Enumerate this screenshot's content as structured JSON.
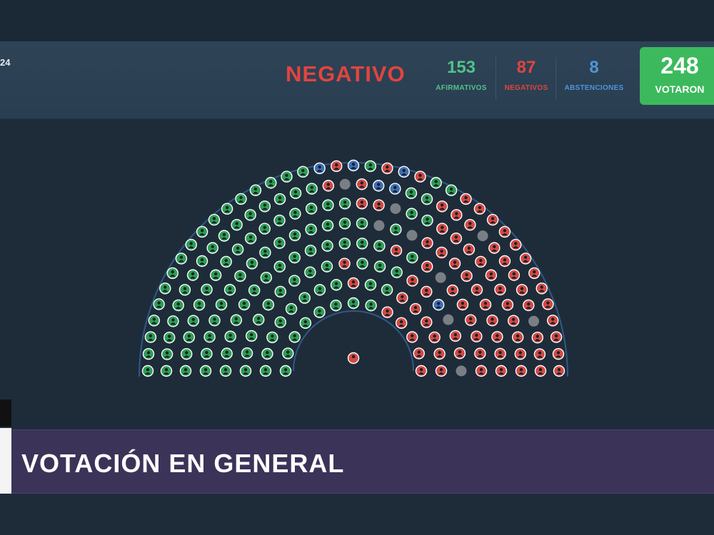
{
  "header": {
    "date_fragment": "24",
    "result": "NEGATIVO",
    "stats": {
      "afirmativos": {
        "value": "153",
        "label": "AFIRMATIVOS",
        "color": "#4fc38a"
      },
      "negativos": {
        "value": "87",
        "label": "NEGATIVOS",
        "color": "#e2443f"
      },
      "abstenciones": {
        "value": "8",
        "label": "ABSTENCIONES",
        "color": "#4f95d8"
      }
    },
    "total": {
      "value": "248",
      "label": "VOTARON",
      "color": "#3cb95d"
    }
  },
  "hemicycle": {
    "vote_colors": {
      "afirmativo": "#2e9e55",
      "negativo": "#d24a44",
      "abstencion": "#3d6fb5",
      "ausente": "#7a7f86"
    }
  },
  "banner": {
    "title": "VOTACIÓN EN GENERAL"
  }
}
